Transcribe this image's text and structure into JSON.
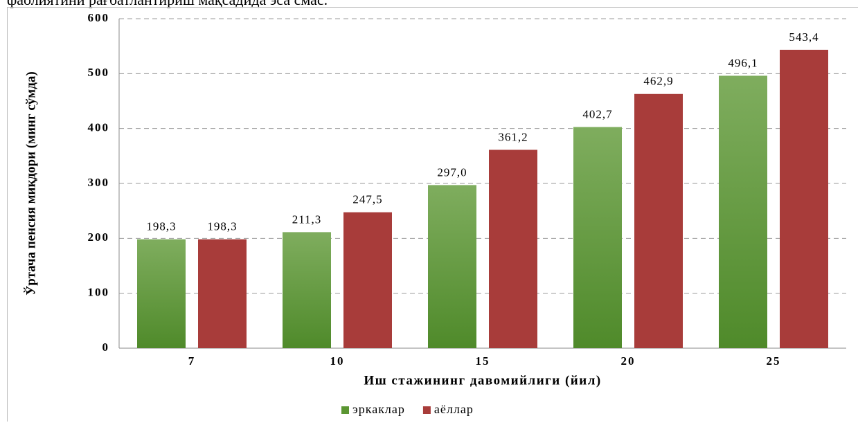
{
  "caption": "фаолиятини рағбатлантириш мақсадида эса смас.",
  "chart_data": {
    "type": "bar",
    "x_label": "Иш стажининг давомийлиги (йил)",
    "y_label": "Ўртача пенсия миқдори (минг сўмда)",
    "categories": [
      "7",
      "10",
      "15",
      "20",
      "25"
    ],
    "series": [
      {
        "name": "эркаклар",
        "color": "#5b9632",
        "values": [
          198.3,
          211.3,
          297.0,
          402.7,
          496.1
        ],
        "value_labels": [
          "198,3",
          "211,3",
          "297,0",
          "402,7",
          "496,1"
        ]
      },
      {
        "name": "аёллар",
        "color": "#a83c3a",
        "values": [
          198.3,
          247.5,
          361.2,
          462.9,
          543.4
        ],
        "value_labels": [
          "198,3",
          "247,5",
          "361,2",
          "462,9",
          "543,4"
        ]
      }
    ],
    "ylim": [
      0,
      600
    ],
    "yticks": [
      0,
      100,
      200,
      300,
      400,
      500,
      600
    ],
    "grid": true,
    "legend": "bottom"
  }
}
